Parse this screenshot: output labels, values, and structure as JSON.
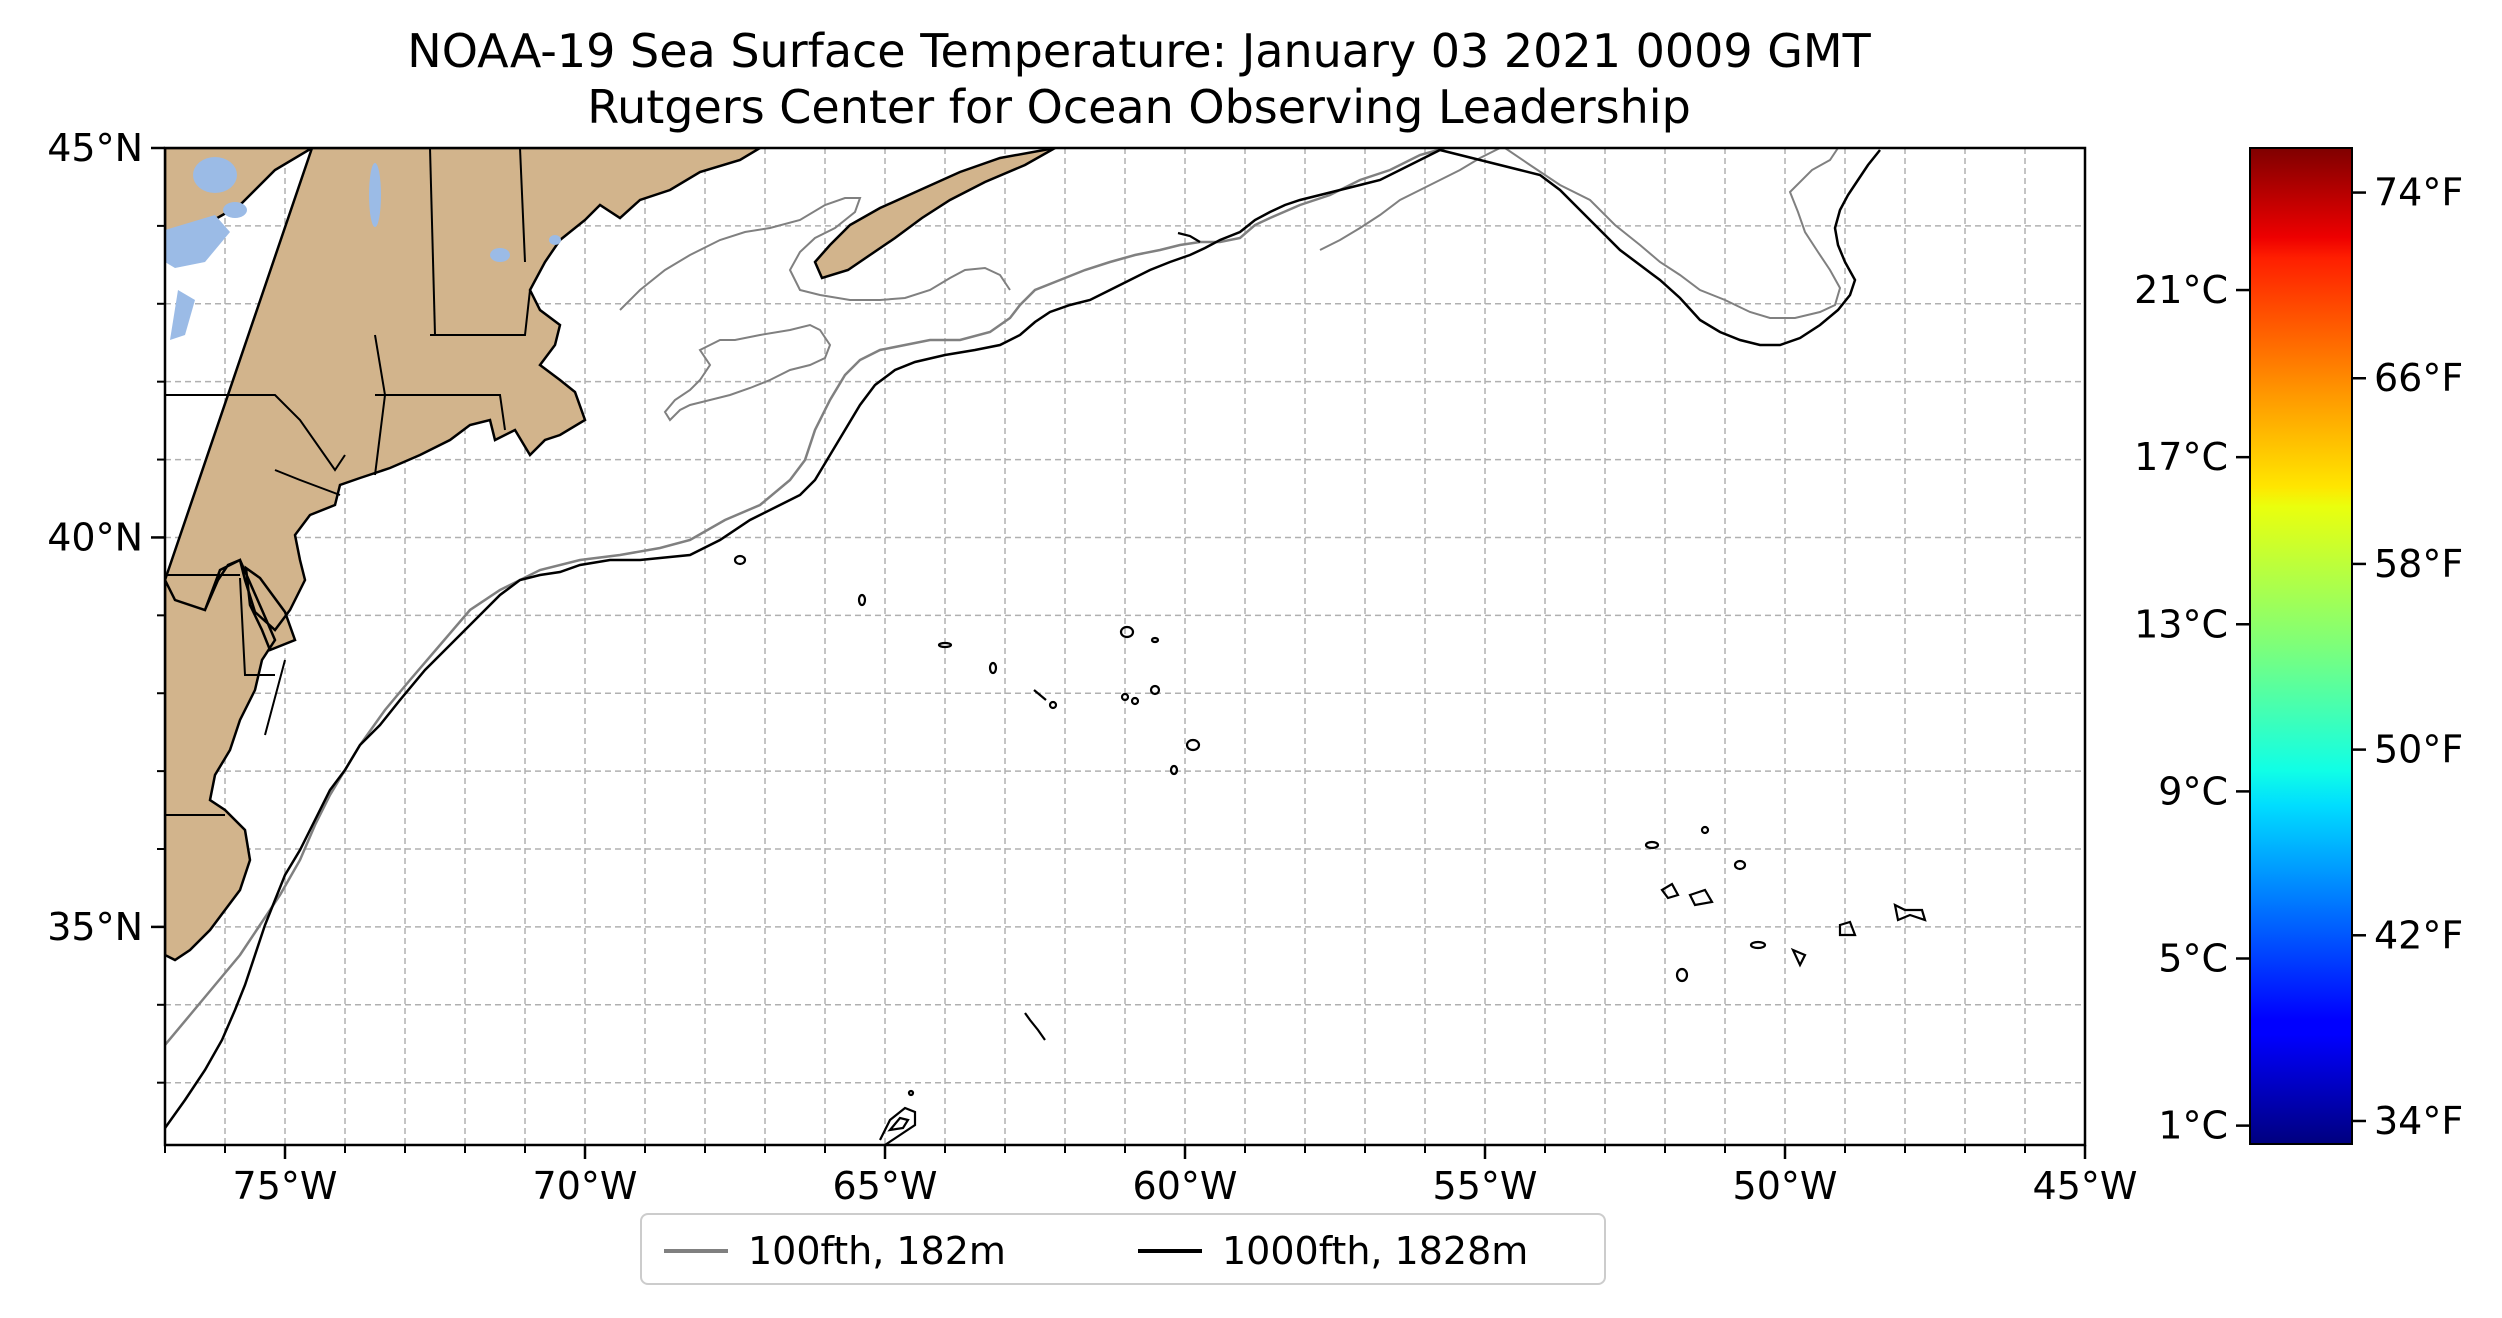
{
  "title": {
    "line1": "NOAA-19 Sea Surface Temperature: January 03 2021 0009 GMT",
    "line2": "Rutgers Center for Ocean Observing Leadership"
  },
  "map": {
    "extent": {
      "lon_min": -77,
      "lon_max": -45,
      "lat_min": 32.2,
      "lat_max": 45
    },
    "gridlines": true,
    "land_color": "#d2b48c",
    "lake_color": "#9bbbe6",
    "ocean_color": "#ffffff",
    "lat_ticks": [
      {
        "value": 45,
        "label": "45°N"
      },
      {
        "value": 40,
        "label": "40°N"
      },
      {
        "value": 35,
        "label": "35°N"
      }
    ],
    "lon_ticks": [
      {
        "value": -75,
        "label": "75°W"
      },
      {
        "value": -70,
        "label": "70°W"
      },
      {
        "value": -65,
        "label": "65°W"
      },
      {
        "value": -60,
        "label": "60°W"
      },
      {
        "value": -55,
        "label": "55°W"
      },
      {
        "value": -50,
        "label": "50°W"
      },
      {
        "value": -45,
        "label": "45°W"
      }
    ]
  },
  "colorbar": {
    "colormap": "jet",
    "celsius_range": [
      0.56,
      24.4
    ],
    "celsius_ticks": [
      {
        "value": 1,
        "label": "1°C"
      },
      {
        "value": 5,
        "label": "5°C"
      },
      {
        "value": 9,
        "label": "9°C"
      },
      {
        "value": 13,
        "label": "13°C"
      },
      {
        "value": 17,
        "label": "17°C"
      },
      {
        "value": 21,
        "label": "21°C"
      }
    ],
    "fahrenheit_ticks": [
      {
        "value": 34,
        "label": "34°F"
      },
      {
        "value": 42,
        "label": "42°F"
      },
      {
        "value": 50,
        "label": "50°F"
      },
      {
        "value": 58,
        "label": "58°F"
      },
      {
        "value": 66,
        "label": "66°F"
      },
      {
        "value": 74,
        "label": "74°F"
      }
    ]
  },
  "legend": {
    "items": [
      {
        "label": "100fth, 182m",
        "color": "#808080"
      },
      {
        "label": "1000fth, 1828m",
        "color": "#000000"
      }
    ]
  }
}
